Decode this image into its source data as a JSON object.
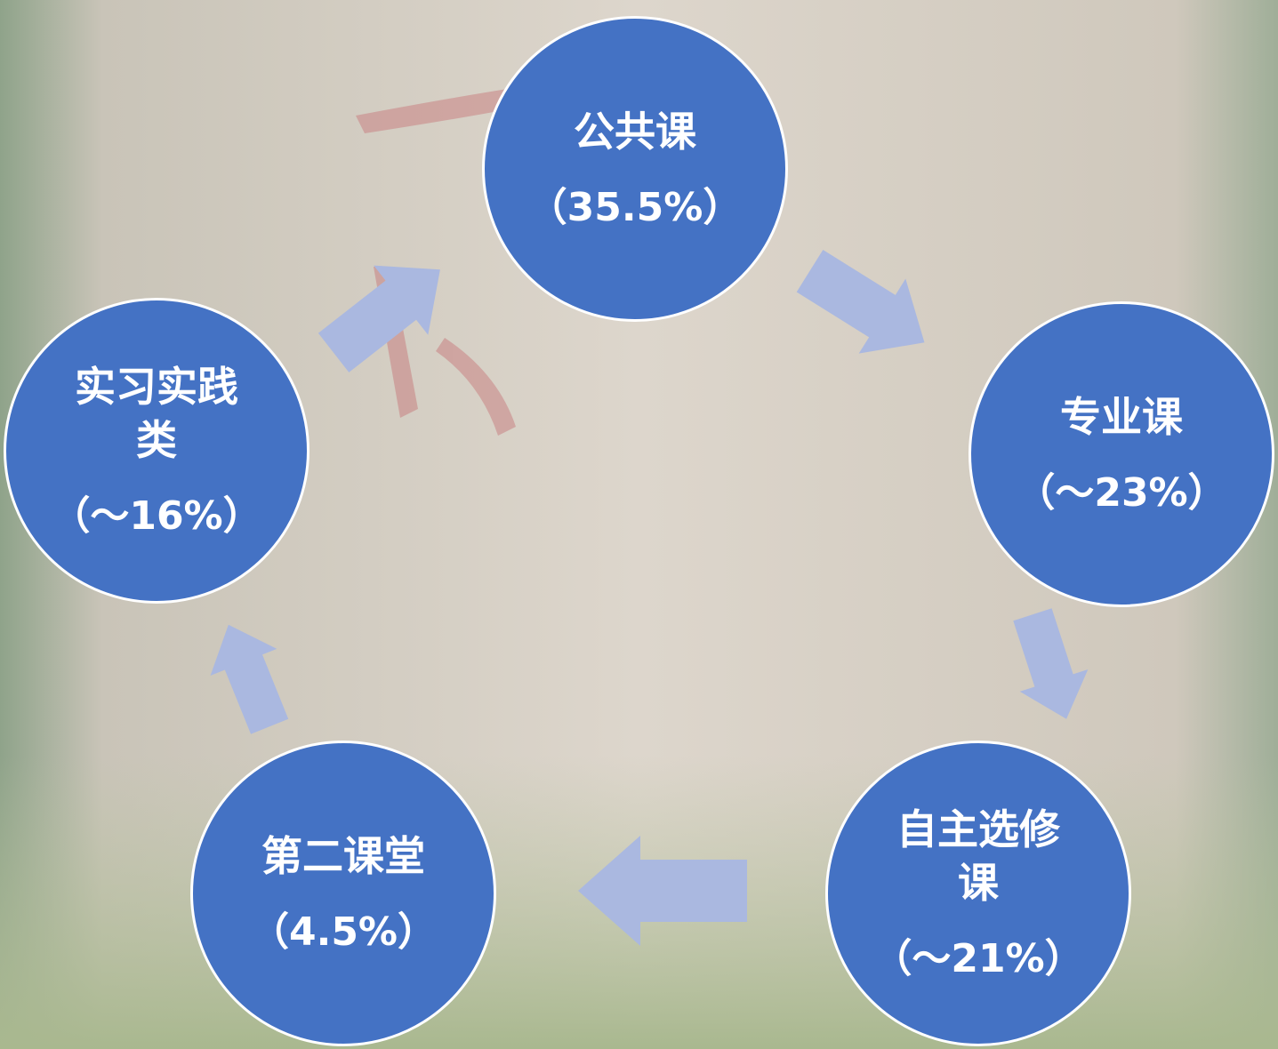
{
  "nodes": [
    {
      "label": "公共课",
      "share": "（35.5%）"
    },
    {
      "label": "专业课",
      "share": "（～23%）"
    },
    {
      "label": "自主选修课",
      "share": "（～21%）"
    },
    {
      "label": "第二课堂",
      "share": "（4.5%）"
    },
    {
      "label": "实习实践类",
      "share": "（～16%）"
    }
  ]
}
